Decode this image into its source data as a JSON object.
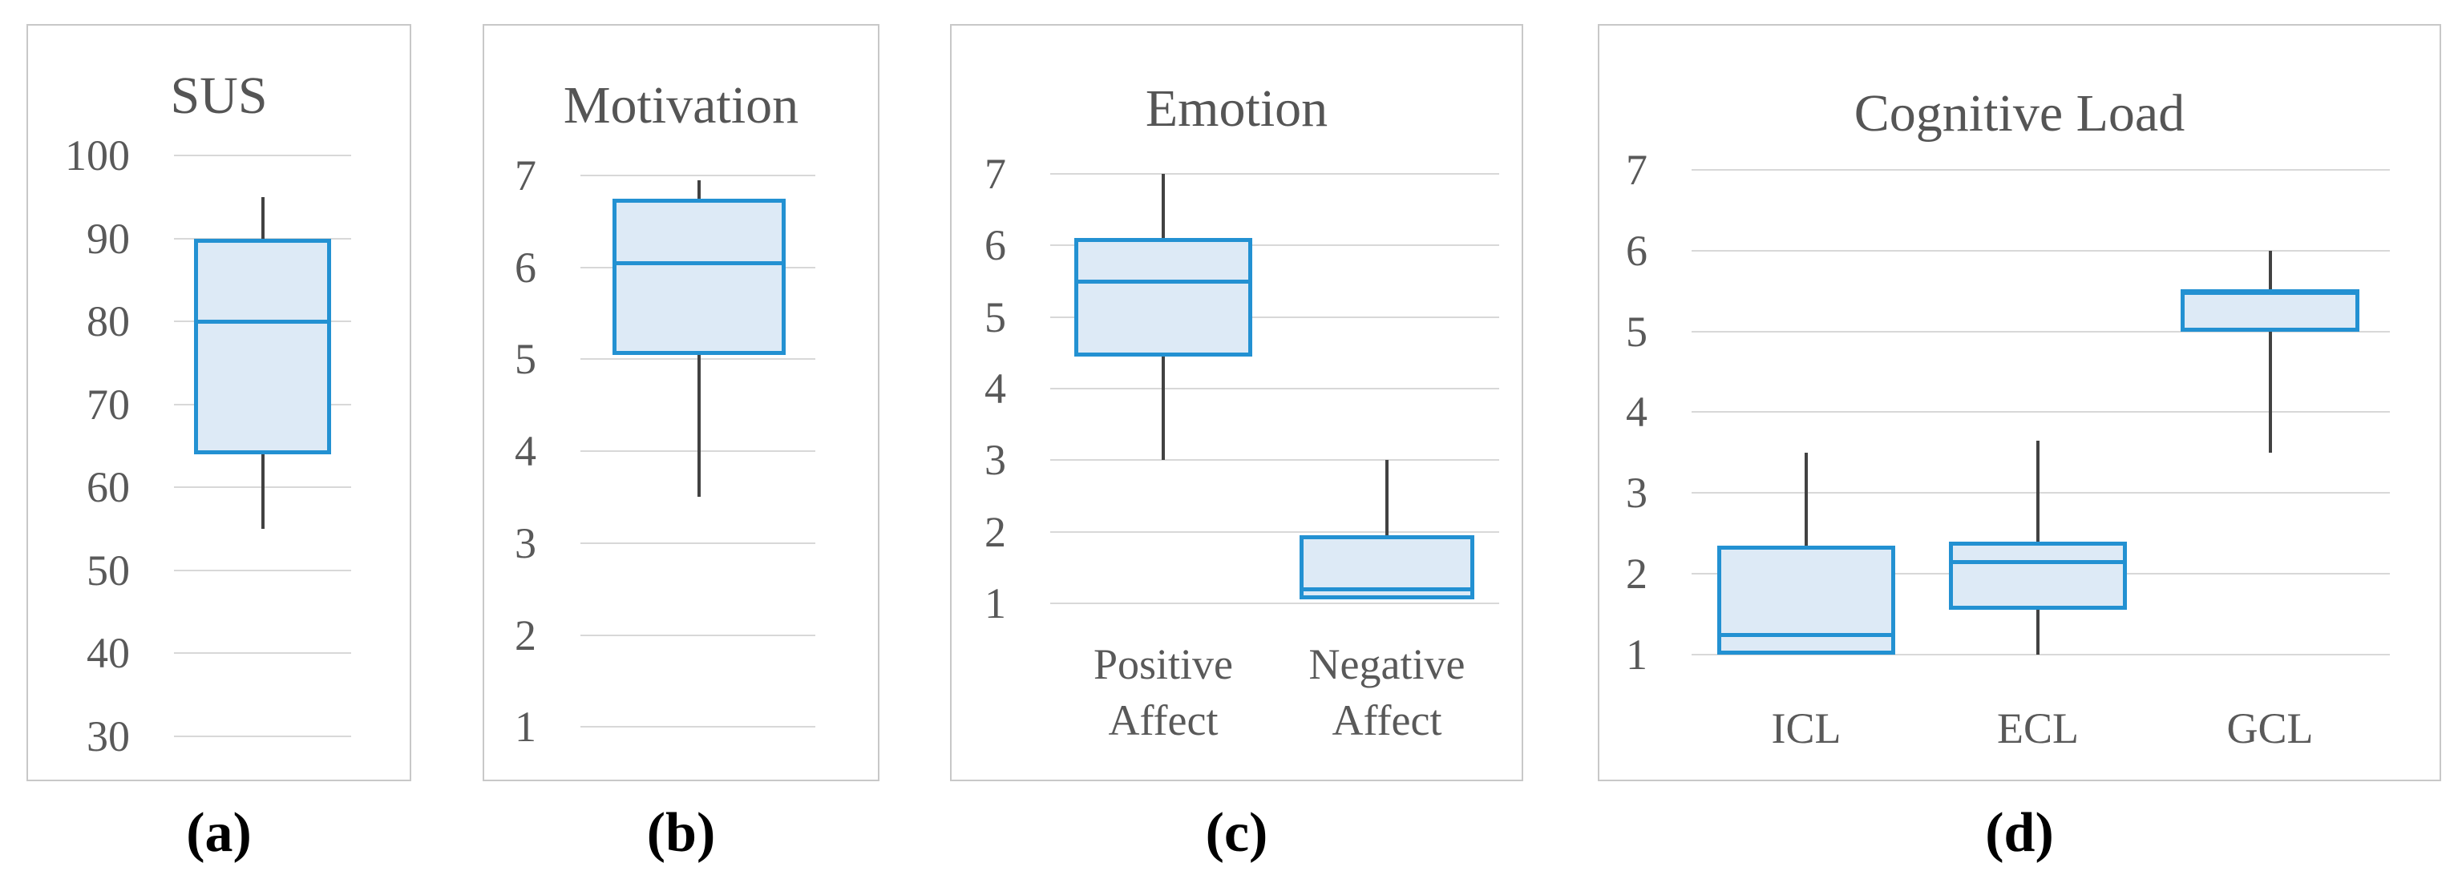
{
  "panel_labels": [
    "(a)",
    "(b)",
    "(c)",
    "(d)"
  ],
  "colors": {
    "box_border": "#2391d2",
    "box_fill": "#ddeaf6",
    "whisker": "#424242",
    "gridline": "#d8d8d8",
    "tick_text": "#595959",
    "title_text": "#555555",
    "panel_border": "#c8c8c8",
    "label_text": "#000000"
  },
  "chart_data": [
    {
      "type": "boxplot",
      "title": "SUS",
      "ylim": [
        30,
        100
      ],
      "yticks": [
        100,
        90,
        80,
        70,
        60,
        50,
        40,
        30
      ],
      "grid": true,
      "categories": [
        ""
      ],
      "series": [
        {
          "name": "SUS",
          "whisker_low": 55,
          "q1": 64,
          "median": 80,
          "q3": 90,
          "whisker_high": 95
        }
      ]
    },
    {
      "type": "boxplot",
      "title": "Motivation",
      "ylim": [
        1,
        7
      ],
      "yticks": [
        7,
        6,
        5,
        4,
        3,
        2,
        1
      ],
      "grid": true,
      "categories": [
        ""
      ],
      "series": [
        {
          "name": "Motivation",
          "whisker_low": 3.5,
          "q1": 5.05,
          "median": 6.05,
          "q3": 6.75,
          "whisker_high": 6.95
        }
      ]
    },
    {
      "type": "boxplot",
      "title": "Emotion",
      "ylim": [
        1,
        7
      ],
      "yticks": [
        7,
        6,
        5,
        4,
        3,
        2,
        1
      ],
      "grid": true,
      "categories": [
        "Positive Affect",
        "Negative Affect"
      ],
      "series": [
        {
          "name": "Positive Affect",
          "whisker_low": 3.0,
          "q1": 4.45,
          "median": 5.5,
          "q3": 6.1,
          "whisker_high": 7.0
        },
        {
          "name": "Negative Affect",
          "whisker_low": 1.05,
          "q1": 1.05,
          "median": 1.2,
          "q3": 1.95,
          "whisker_high": 3.0
        }
      ]
    },
    {
      "type": "boxplot",
      "title": "Cognitive Load",
      "ylim": [
        1,
        7
      ],
      "yticks": [
        7,
        6,
        5,
        4,
        3,
        2,
        1
      ],
      "grid": true,
      "categories": [
        "ICL",
        "ECL",
        "GCL"
      ],
      "series": [
        {
          "name": "ICL",
          "whisker_low": 1.0,
          "q1": 1.0,
          "median": 1.25,
          "q3": 2.35,
          "whisker_high": 3.5
        },
        {
          "name": "ECL",
          "whisker_low": 1.0,
          "q1": 1.55,
          "median": 2.15,
          "q3": 2.4,
          "whisker_high": 3.65
        },
        {
          "name": "GCL",
          "whisker_low": 3.5,
          "q1": 5.0,
          "median": 5.5,
          "q3": 5.5,
          "whisker_high": 6.0
        }
      ]
    }
  ]
}
